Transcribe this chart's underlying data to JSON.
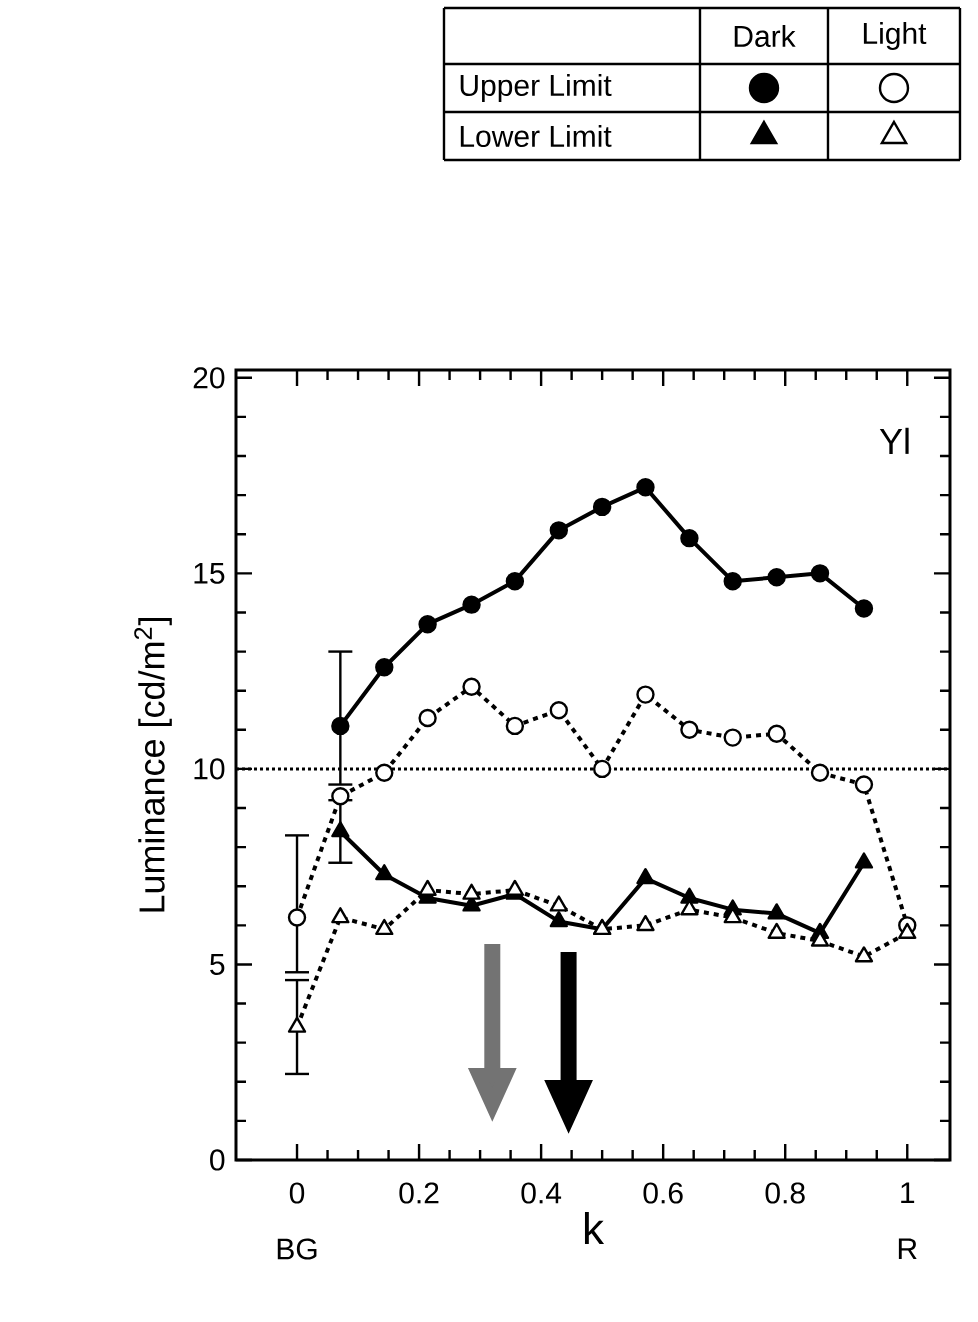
{
  "chart_data": {
    "type": "line",
    "title": "Yl",
    "xlabel": "k",
    "ylabel": "Luminance [cd/m$^{2}$]",
    "xlim": [
      -0.1,
      1.07
    ],
    "ylim": [
      0,
      20.2
    ],
    "xticks": [
      0,
      0.2,
      0.4,
      0.6,
      0.8,
      1
    ],
    "yticks": [
      0,
      5,
      10,
      15,
      20
    ],
    "ref_lines": [
      {
        "axis": "y",
        "value": 10,
        "line_style": "dotted"
      }
    ],
    "annotations": [
      "BG",
      "R",
      "Dark",
      "Light",
      "Upper Limit",
      "Lower Limit"
    ],
    "series": [
      {
        "color": "#000000",
        "marker": "circle",
        "line_style": "solid",
        "x": [
          0.071,
          0.143,
          0.214,
          0.286,
          0.357,
          0.429,
          0.5,
          0.571,
          0.643,
          0.714,
          0.786,
          0.857,
          0.929
        ],
        "values": [
          11.1,
          12.6,
          13.7,
          14.2,
          14.8,
          16.1,
          16.7,
          17.2,
          15.9,
          14.8,
          14.9,
          15.0,
          14.1
        ],
        "errors": [
          [
            9.6,
            13.0
          ],
          null,
          null,
          null,
          null,
          null,
          null,
          null,
          null,
          null,
          null,
          null,
          null
        ]
      },
      {
        "color": "#000000",
        "marker": "circle",
        "line_style": "dotted",
        "x": [
          0,
          0.071,
          0.143,
          0.214,
          0.286,
          0.357,
          0.429,
          0.5,
          0.571,
          0.643,
          0.714,
          0.786,
          0.857,
          0.929,
          1
        ],
        "values": [
          6.2,
          9.3,
          9.9,
          11.3,
          12.1,
          11.1,
          11.5,
          10.0,
          11.9,
          11.0,
          10.8,
          10.9,
          9.9,
          9.6,
          6.0
        ],
        "errors": [
          [
            4.8,
            8.3
          ],
          null,
          null,
          null,
          null,
          null,
          null,
          null,
          null,
          null,
          null,
          null,
          null,
          null,
          null
        ]
      },
      {
        "color": "#000000",
        "marker": "triangle",
        "line_style": "solid",
        "x": [
          0.071,
          0.143,
          0.214,
          0.286,
          0.357,
          0.429,
          0.5,
          0.571,
          0.643,
          0.714,
          0.786,
          0.857,
          0.929
        ],
        "values": [
          8.4,
          7.3,
          6.7,
          6.5,
          6.8,
          6.1,
          5.9,
          7.2,
          6.7,
          6.4,
          6.3,
          5.8,
          7.6
        ],
        "errors": [
          [
            7.6,
            9.2
          ],
          null,
          null,
          null,
          null,
          null,
          null,
          null,
          null,
          null,
          null,
          null,
          null
        ]
      },
      {
        "color": "#000000",
        "marker": "triangle",
        "line_style": "dotted",
        "x": [
          0,
          0.071,
          0.143,
          0.214,
          0.286,
          0.357,
          0.429,
          0.5,
          0.571,
          0.643,
          0.714,
          0.786,
          0.857,
          0.929,
          1
        ],
        "values": [
          3.4,
          6.2,
          5.9,
          6.9,
          6.8,
          6.9,
          6.5,
          5.9,
          6.0,
          6.4,
          6.2,
          5.8,
          5.6,
          5.2,
          5.8
        ],
        "errors": [
          [
            2.2,
            4.6
          ],
          null,
          null,
          null,
          null,
          null,
          null,
          null,
          null,
          null,
          null,
          null,
          null,
          null,
          null
        ]
      }
    ]
  }
}
